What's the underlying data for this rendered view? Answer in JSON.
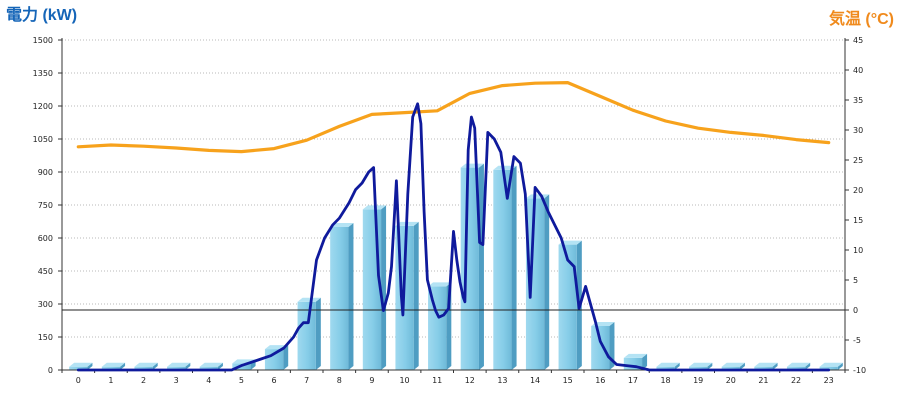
{
  "chart_data": {
    "type": "bar",
    "left_axis_title": "電力 (kW)",
    "right_axis_title": "気温 (°C)",
    "x_categories": [
      "0",
      "1",
      "2",
      "3",
      "4",
      "5",
      "6",
      "7",
      "8",
      "9",
      "10",
      "11",
      "12",
      "13",
      "14",
      "15",
      "16",
      "17",
      "18",
      "19",
      "20",
      "21",
      "22",
      "23"
    ],
    "y_left_ticks": [
      "0",
      "150",
      "300",
      "450",
      "600",
      "750",
      "900",
      "1050",
      "1200",
      "1350",
      "1500"
    ],
    "y_left_range": [
      0,
      1500
    ],
    "y_right_ticks": [
      "-10",
      "-5",
      "0",
      "5",
      "10",
      "15",
      "20",
      "25",
      "30",
      "35",
      "40",
      "45"
    ],
    "y_right_range": [
      -10,
      45
    ],
    "grid": true,
    "reference_line_right": 0,
    "bar_series": {
      "values": [
        15,
        15,
        15,
        15,
        15,
        30,
        95,
        310,
        650,
        730,
        655,
        380,
        920,
        910,
        780,
        570,
        200,
        55,
        15,
        15,
        15,
        15,
        15,
        15
      ],
      "color": "#86cde8"
    },
    "power_line": {
      "color": "#0f1a9c",
      "points": [
        [
          0,
          0
        ],
        [
          1,
          0
        ],
        [
          2,
          0
        ],
        [
          3,
          0
        ],
        [
          4,
          0
        ],
        [
          4.7,
          0
        ],
        [
          5,
          20
        ],
        [
          5.3,
          35
        ],
        [
          5.6,
          50
        ],
        [
          5.9,
          65
        ],
        [
          6.3,
          100
        ],
        [
          6.6,
          150
        ],
        [
          6.75,
          190
        ],
        [
          6.9,
          215
        ],
        [
          7.05,
          215
        ],
        [
          7.3,
          500
        ],
        [
          7.55,
          600
        ],
        [
          7.8,
          660
        ],
        [
          8.0,
          690
        ],
        [
          8.3,
          760
        ],
        [
          8.5,
          820
        ],
        [
          8.7,
          850
        ],
        [
          8.9,
          900
        ],
        [
          9.05,
          920
        ],
        [
          9.2,
          430
        ],
        [
          9.35,
          270
        ],
        [
          9.5,
          350
        ],
        [
          9.6,
          470
        ],
        [
          9.75,
          860
        ],
        [
          9.9,
          340
        ],
        [
          9.95,
          250
        ],
        [
          10.1,
          800
        ],
        [
          10.25,
          1150
        ],
        [
          10.4,
          1210
        ],
        [
          10.5,
          1120
        ],
        [
          10.6,
          720
        ],
        [
          10.7,
          410
        ],
        [
          10.85,
          320
        ],
        [
          10.95,
          270
        ],
        [
          11.05,
          240
        ],
        [
          11.2,
          250
        ],
        [
          11.35,
          280
        ],
        [
          11.5,
          630
        ],
        [
          11.6,
          500
        ],
        [
          11.7,
          400
        ],
        [
          11.8,
          330
        ],
        [
          11.85,
          310
        ],
        [
          11.95,
          1000
        ],
        [
          12.05,
          1150
        ],
        [
          12.15,
          1100
        ],
        [
          12.3,
          580
        ],
        [
          12.4,
          570
        ],
        [
          12.55,
          1080
        ],
        [
          12.75,
          1050
        ],
        [
          12.95,
          990
        ],
        [
          13.15,
          780
        ],
        [
          13.35,
          970
        ],
        [
          13.55,
          940
        ],
        [
          13.7,
          800
        ],
        [
          13.85,
          330
        ],
        [
          14.0,
          830
        ],
        [
          14.2,
          790
        ],
        [
          14.4,
          720
        ],
        [
          14.6,
          660
        ],
        [
          14.8,
          600
        ],
        [
          15.0,
          500
        ],
        [
          15.2,
          470
        ],
        [
          15.35,
          280
        ],
        [
          15.55,
          380
        ],
        [
          15.7,
          300
        ],
        [
          15.85,
          220
        ],
        [
          16.0,
          130
        ],
        [
          16.25,
          60
        ],
        [
          16.5,
          25
        ],
        [
          16.8,
          20
        ],
        [
          17.1,
          15
        ],
        [
          17.5,
          0
        ],
        [
          18,
          0
        ],
        [
          19,
          0
        ],
        [
          20,
          0
        ],
        [
          21,
          0
        ],
        [
          22,
          0
        ],
        [
          23,
          0
        ]
      ]
    },
    "temperature_line": {
      "color": "#f7a21c",
      "points": [
        [
          0,
          27.2
        ],
        [
          1,
          27.5
        ],
        [
          2,
          27.3
        ],
        [
          3,
          27.0
        ],
        [
          4,
          26.6
        ],
        [
          5,
          26.4
        ],
        [
          6,
          26.9
        ],
        [
          7,
          28.3
        ],
        [
          8,
          30.6
        ],
        [
          9,
          32.6
        ],
        [
          10,
          32.9
        ],
        [
          11,
          33.2
        ],
        [
          12,
          36.1
        ],
        [
          13,
          37.4
        ],
        [
          14,
          37.8
        ],
        [
          15,
          37.9
        ],
        [
          16,
          35.6
        ],
        [
          17,
          33.3
        ],
        [
          18,
          31.5
        ],
        [
          19,
          30.3
        ],
        [
          20,
          29.6
        ],
        [
          21,
          29.1
        ],
        [
          22,
          28.4
        ],
        [
          23,
          27.9
        ]
      ]
    }
  }
}
